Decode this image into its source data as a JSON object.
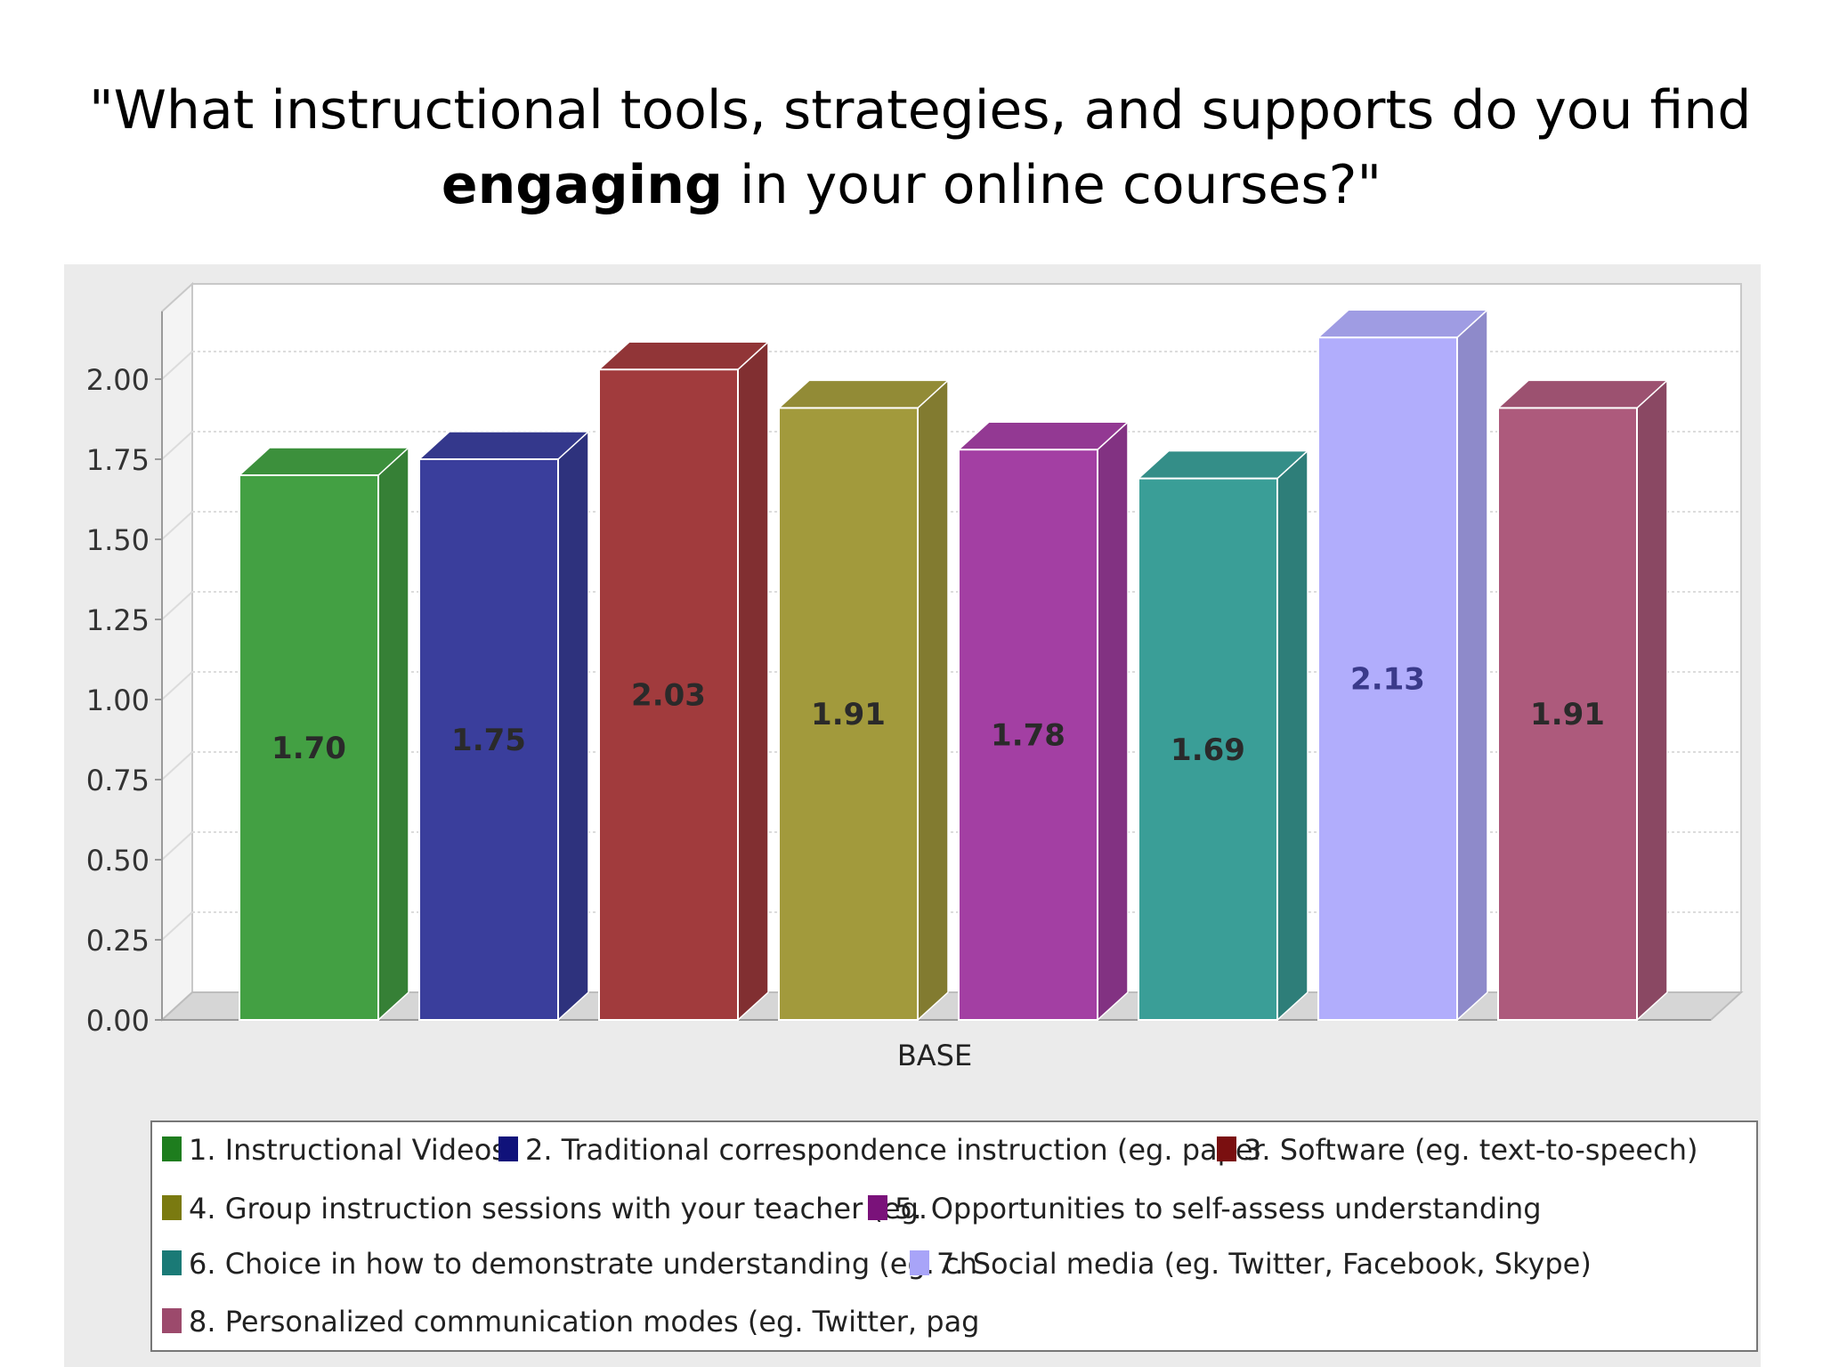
{
  "title": {
    "line1": "\"What instructional tools, strategies, and supports do you find",
    "line2_bold": "engaging",
    "line2_rest": " in your online courses?\""
  },
  "colors": {
    "panel_background": "#ebebeb",
    "plot_background": "#ffffff",
    "gridline": "#dcdcdc",
    "axis": "#9a9a9a",
    "bars": [
      "#43a043",
      "#3a3e9c",
      "#a13b3d",
      "#a29a3c",
      "#a33fa3",
      "#3a9e97",
      "#b1adfc",
      "#ad5a7c"
    ],
    "legend_swatches": [
      "#1e7d1e",
      "#10127a",
      "#7a0f10",
      "#7a7a10",
      "#7a127a",
      "#1a7a76",
      "#a8a4f8",
      "#9c4a6c"
    ]
  },
  "chart_data": {
    "type": "bar",
    "title": "\"What instructional tools, strategies, and supports do you find engaging in your online courses?\"",
    "xlabel": "BASE",
    "ylabel": "",
    "ylim": [
      0,
      2.25
    ],
    "yticks": [
      0,
      0.25,
      0.5,
      0.75,
      1.0,
      1.25,
      1.5,
      1.75,
      2.0
    ],
    "ytick_labels": [
      "0.00",
      "0.25",
      "0.50",
      "0.75",
      "1.00",
      "1.25",
      "1.50",
      "1.75",
      "2.00"
    ],
    "categories": [
      "BASE"
    ],
    "grid": true,
    "legend_position": "bottom",
    "series": [
      {
        "name": "1. Instructional Videos",
        "values": [
          1.7
        ],
        "label": "1.70"
      },
      {
        "name": "2. Traditional correspondence instruction (eg. paper",
        "values": [
          1.75
        ],
        "label": "1.75"
      },
      {
        "name": "3. Software (eg. text-to-speech)",
        "values": [
          2.03
        ],
        "label": "2.03"
      },
      {
        "name": "4. Group instruction sessions with your teacher (eg.",
        "values": [
          1.91
        ],
        "label": "1.91"
      },
      {
        "name": "5. Opportunities to self-assess understanding",
        "values": [
          1.78
        ],
        "label": "1.78"
      },
      {
        "name": "6. Choice in how to demonstrate understanding (eg. ch",
        "values": [
          1.69
        ],
        "label": "1.69"
      },
      {
        "name": "7. Social media (eg. Twitter, Facebook, Skype)",
        "values": [
          2.13
        ],
        "label": "2.13"
      },
      {
        "name": "8. Personalized communication modes (eg. Twitter, pag",
        "values": [
          1.91
        ],
        "label": "1.91"
      }
    ]
  }
}
